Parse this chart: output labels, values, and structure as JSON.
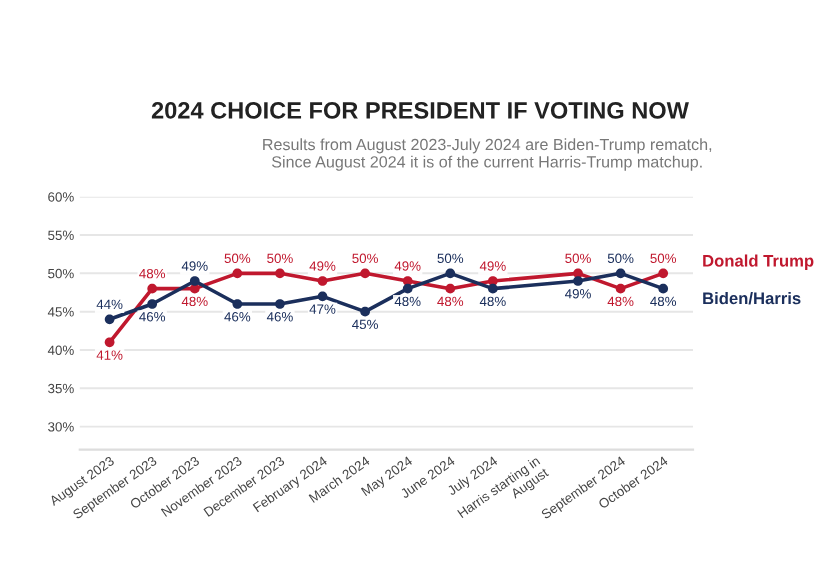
{
  "chart_data": {
    "type": "line",
    "title": "2024 CHOICE FOR PRESIDENT IF VOTING NOW",
    "subtitle": "Results from August 2023-July 2024 are Biden-Trump rematch,\nSince August 2024 it is of the current Harris-Trump matchup.",
    "categories": [
      "August 2023",
      "September 2023",
      "October 2023",
      "November 2023",
      "December 2023",
      "February 2024",
      "March 2024",
      "May 2024",
      "June 2024",
      "July 2024",
      "Harris starting in\nAugust",
      null,
      "September 2024",
      "October 2024"
    ],
    "series": [
      {
        "name": "Donald Trump",
        "color": "#c0182e",
        "values": [
          41,
          48,
          48,
          50,
          50,
          49,
          50,
          49,
          48,
          49,
          null,
          50,
          48,
          50
        ],
        "value_labels": [
          "41%",
          "48%",
          "48%",
          "50%",
          "50%",
          "49%",
          "50%",
          "49%",
          "48%",
          "49%",
          null,
          "50%",
          "48%",
          "50%"
        ]
      },
      {
        "name": "Biden/Harris",
        "color": "#1b2f5c",
        "values": [
          44,
          46,
          49,
          46,
          46,
          47,
          45,
          48,
          50,
          48,
          null,
          49,
          50,
          48
        ],
        "value_labels": [
          "44%",
          "46%",
          "49%",
          "46%",
          "46%",
          "47%",
          "45%",
          "48%",
          "50%",
          "48%",
          null,
          "49%",
          "50%",
          "48%"
        ]
      }
    ],
    "ylim": [
      27,
      60
    ],
    "yticks": [
      {
        "value": 30,
        "label": "30%"
      },
      {
        "value": 35,
        "label": "35%"
      },
      {
        "value": 40,
        "label": "40%"
      },
      {
        "value": 45,
        "label": "45%"
      },
      {
        "value": 50,
        "label": "50%"
      },
      {
        "value": 55,
        "label": "55%"
      },
      {
        "value": 60,
        "label": "60%"
      }
    ],
    "grid": "y",
    "legend": "right",
    "marker": "circle",
    "line_style": "solid"
  }
}
